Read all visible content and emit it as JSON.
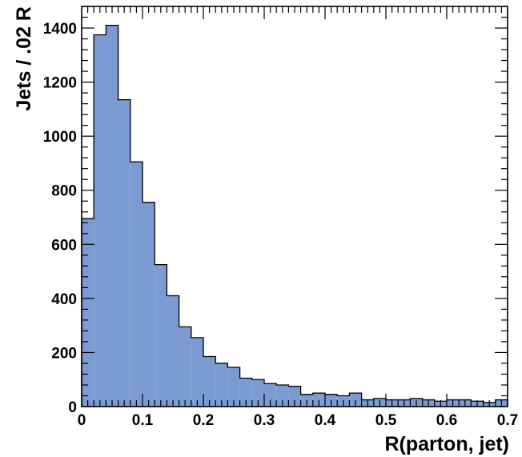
{
  "chart_data": {
    "type": "bar",
    "title": "",
    "xlabel": "R(parton, jet)",
    "ylabel": "Jets / .02 R",
    "bin_width": 0.02,
    "xlim": [
      0,
      0.7
    ],
    "ylim": [
      0,
      1480
    ],
    "x_ticks": [
      "0",
      "0.1",
      "0.2",
      "0.3",
      "0.4",
      "0.5",
      "0.6",
      "0.7"
    ],
    "y_ticks": [
      "0",
      "200",
      "400",
      "600",
      "800",
      "1000",
      "1200",
      "1400"
    ],
    "bin_starts": [
      0.0,
      0.02,
      0.04,
      0.06,
      0.08,
      0.1,
      0.12,
      0.14,
      0.16,
      0.18,
      0.2,
      0.22,
      0.24,
      0.26,
      0.28,
      0.3,
      0.32,
      0.34,
      0.36,
      0.38,
      0.4,
      0.42,
      0.44,
      0.46,
      0.48,
      0.5,
      0.52,
      0.54,
      0.56,
      0.58,
      0.6,
      0.62,
      0.64,
      0.66,
      0.68
    ],
    "values": [
      695,
      1375,
      1410,
      1135,
      905,
      755,
      525,
      410,
      295,
      255,
      185,
      160,
      145,
      105,
      100,
      85,
      80,
      75,
      45,
      50,
      45,
      40,
      50,
      25,
      30,
      25,
      25,
      30,
      25,
      20,
      25,
      25,
      20,
      15,
      25
    ],
    "fill_color": "#7b9bd2",
    "edge_color": "#000000",
    "grid": false,
    "legend": "none"
  }
}
